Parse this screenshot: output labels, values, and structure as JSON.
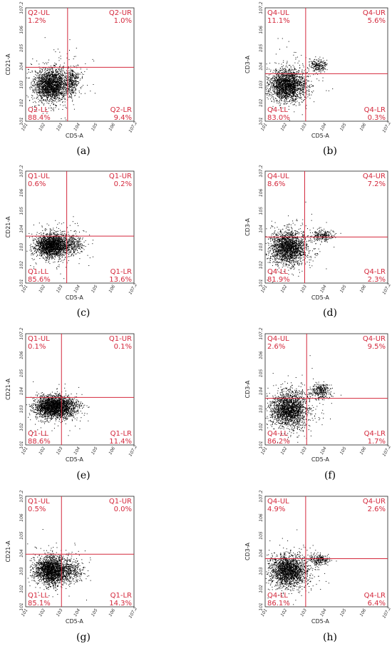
{
  "chart_data": [
    {
      "type": "scatter",
      "caption": "(a)",
      "xlabel": "CD5-A",
      "ylabel": "CD21-A",
      "xlim": [
        1,
        7.2
      ],
      "ylim": [
        1,
        7.2
      ],
      "xticks": [
        "10^1",
        "10^2",
        "10^3",
        "10^4",
        "10^5",
        "10^6",
        "10^7.2"
      ],
      "yticks": [
        "10^1",
        "10^2",
        "10^3",
        "10^4",
        "10^5",
        "10^6",
        "10^7.2"
      ],
      "gate_x": 3.4,
      "gate_y": 3.95,
      "quadrants": {
        "UL": {
          "name": "Q2-UL",
          "value": "1.2%"
        },
        "UR": {
          "name": "Q2-UR",
          "value": "1.0%"
        },
        "LL": {
          "name": "Q2-LL",
          "value": "88.4%"
        },
        "LR": {
          "name": "Q2-LR",
          "value": "9.4%"
        }
      },
      "clusters": [
        {
          "x": 2.45,
          "y": 3.0,
          "sx": 0.48,
          "sy": 0.42,
          "n": 1900
        },
        {
          "x": 3.65,
          "y": 3.2,
          "sx": 0.17,
          "sy": 0.35,
          "n": 260
        },
        {
          "x": 2.7,
          "y": 3.1,
          "sx": 0.9,
          "sy": 0.8,
          "n": 320
        }
      ]
    },
    {
      "type": "scatter",
      "caption": "(b)",
      "xlabel": "CD5-A",
      "ylabel": "CD3-A",
      "xlim": [
        1,
        7.2
      ],
      "ylim": [
        1,
        7.2
      ],
      "xticks": [
        "10^1",
        "10^2",
        "10^3",
        "10^4",
        "10^5",
        "10^6",
        "10^7.2"
      ],
      "yticks": [
        "10^1",
        "10^2",
        "10^3",
        "10^4",
        "10^5",
        "10^6",
        "10^7.2"
      ],
      "gate_x": 3.05,
      "gate_y": 3.6,
      "quadrants": {
        "UL": {
          "name": "Q4-UL",
          "value": "11.1%"
        },
        "UR": {
          "name": "Q4-UR",
          "value": "5.6%"
        },
        "LL": {
          "name": "Q4-LL",
          "value": "83.0%"
        },
        "LR": {
          "name": "Q4-LR",
          "value": "0.3%"
        }
      },
      "clusters": [
        {
          "x": 2.1,
          "y": 2.95,
          "sx": 0.45,
          "sy": 0.42,
          "n": 1900
        },
        {
          "x": 3.65,
          "y": 4.05,
          "sx": 0.22,
          "sy": 0.18,
          "n": 220
        },
        {
          "x": 2.3,
          "y": 3.2,
          "sx": 0.8,
          "sy": 0.75,
          "n": 260
        }
      ]
    },
    {
      "type": "scatter",
      "caption": "(c)",
      "xlabel": "CD5-A",
      "ylabel": "CD21-A",
      "xlim": [
        1,
        7.2
      ],
      "ylim": [
        1,
        7.2
      ],
      "xticks": [
        "10^1",
        "10^2",
        "10^3",
        "10^4",
        "10^5",
        "10^6",
        "10^7.2"
      ],
      "yticks": [
        "10^1",
        "10^2",
        "10^3",
        "10^4",
        "10^5",
        "10^6",
        "10^7.2"
      ],
      "gate_x": 3.35,
      "gate_y": 3.6,
      "quadrants": {
        "UL": {
          "name": "Q1-UL",
          "value": "0.6%"
        },
        "UR": {
          "name": "Q1-UR",
          "value": "0.2%"
        },
        "LL": {
          "name": "Q1-LL",
          "value": "85.6%"
        },
        "LR": {
          "name": "Q1-LR",
          "value": "13.6%"
        }
      },
      "clusters": [
        {
          "x": 2.45,
          "y": 3.1,
          "sx": 0.45,
          "sy": 0.32,
          "n": 1900
        },
        {
          "x": 3.6,
          "y": 3.15,
          "sx": 0.35,
          "sy": 0.3,
          "n": 320
        },
        {
          "x": 2.7,
          "y": 3.1,
          "sx": 0.85,
          "sy": 0.6,
          "n": 240
        }
      ]
    },
    {
      "type": "scatter",
      "caption": "(d)",
      "xlabel": "CD5-A",
      "ylabel": "CD3-A",
      "xlim": [
        1,
        7.2
      ],
      "ylim": [
        1,
        7.2
      ],
      "xticks": [
        "10^1",
        "10^2",
        "10^3",
        "10^4",
        "10^5",
        "10^6",
        "10^7.2"
      ],
      "yticks": [
        "10^1",
        "10^2",
        "10^3",
        "10^4",
        "10^5",
        "10^6",
        "10^7.2"
      ],
      "gate_x": 3.0,
      "gate_y": 3.55,
      "quadrants": {
        "UL": {
          "name": "Q4-UL",
          "value": "8.6%"
        },
        "UR": {
          "name": "Q4-UR",
          "value": "7.2%"
        },
        "LL": {
          "name": "Q4-LL",
          "value": "81.9%"
        },
        "LR": {
          "name": "Q4-LR",
          "value": "2.3%"
        }
      },
      "clusters": [
        {
          "x": 2.15,
          "y": 2.95,
          "sx": 0.45,
          "sy": 0.45,
          "n": 1800
        },
        {
          "x": 3.85,
          "y": 3.65,
          "sx": 0.3,
          "sy": 0.15,
          "n": 240
        },
        {
          "x": 2.3,
          "y": 3.1,
          "sx": 0.8,
          "sy": 0.8,
          "n": 240
        }
      ]
    },
    {
      "type": "scatter",
      "caption": "(e)",
      "xlabel": "CD5-A",
      "ylabel": "CD21-A",
      "xlim": [
        1,
        7.2
      ],
      "ylim": [
        1,
        7.2
      ],
      "xticks": [
        "10^1",
        "10^2",
        "10^3",
        "10^4",
        "10^5",
        "10^6",
        "10^7.2"
      ],
      "yticks": [
        "10^1",
        "10^2",
        "10^3",
        "10^4",
        "10^5",
        "10^6",
        "10^7.2"
      ],
      "gate_x": 3.05,
      "gate_y": 3.65,
      "quadrants": {
        "UL": {
          "name": "Q1-UL",
          "value": "0.1%"
        },
        "UR": {
          "name": "Q1-UR",
          "value": "0.1%"
        },
        "LL": {
          "name": "Q1-LL",
          "value": "88.6%"
        },
        "LR": {
          "name": "Q1-LR",
          "value": "11.4%"
        }
      },
      "clusters": [
        {
          "x": 2.55,
          "y": 3.15,
          "sx": 0.5,
          "sy": 0.3,
          "n": 2100
        },
        {
          "x": 3.4,
          "y": 3.1,
          "sx": 0.4,
          "sy": 0.3,
          "n": 320
        },
        {
          "x": 2.6,
          "y": 3.05,
          "sx": 0.8,
          "sy": 0.5,
          "n": 240
        }
      ]
    },
    {
      "type": "scatter",
      "caption": "(f)",
      "xlabel": "CD5-A",
      "ylabel": "CD3-A",
      "xlim": [
        1,
        7.2
      ],
      "ylim": [
        1,
        7.2
      ],
      "xticks": [
        "10^1",
        "10^2",
        "10^3",
        "10^4",
        "10^5",
        "10^6",
        "10^7.2"
      ],
      "yticks": [
        "10^1",
        "10^2",
        "10^3",
        "10^4",
        "10^5",
        "10^6",
        "10^7.2"
      ],
      "gate_x": 3.1,
      "gate_y": 3.6,
      "quadrants": {
        "UL": {
          "name": "Q4-UL",
          "value": "2.6%"
        },
        "UR": {
          "name": "Q4-UR",
          "value": "9.5%"
        },
        "LL": {
          "name": "Q4-LL",
          "value": "86.2%"
        },
        "LR": {
          "name": "Q4-LR",
          "value": "1.7%"
        }
      },
      "clusters": [
        {
          "x": 2.2,
          "y": 3.0,
          "sx": 0.45,
          "sy": 0.48,
          "n": 1800
        },
        {
          "x": 3.8,
          "y": 4.0,
          "sx": 0.25,
          "sy": 0.22,
          "n": 300
        },
        {
          "x": 2.4,
          "y": 3.1,
          "sx": 0.8,
          "sy": 0.8,
          "n": 240
        }
      ]
    },
    {
      "type": "scatter",
      "caption": "(g)",
      "xlabel": "CD5-A",
      "ylabel": "CD21-A",
      "xlim": [
        1,
        7.2
      ],
      "ylim": [
        1,
        7.2
      ],
      "xticks": [
        "10^1",
        "10^2",
        "10^3",
        "10^4",
        "10^5",
        "10^6",
        "10^7.2"
      ],
      "yticks": [
        "10^1",
        "10^2",
        "10^3",
        "10^4",
        "10^5",
        "10^6",
        "10^7.2"
      ],
      "gate_x": 3.05,
      "gate_y": 3.95,
      "quadrants": {
        "UL": {
          "name": "Q1-UL",
          "value": "0.5%"
        },
        "UR": {
          "name": "Q1-UR",
          "value": "0.0%"
        },
        "LL": {
          "name": "Q1-LL",
          "value": "85.1%"
        },
        "LR": {
          "name": "Q1-LR",
          "value": "14.3%"
        }
      },
      "clusters": [
        {
          "x": 2.45,
          "y": 3.05,
          "sx": 0.45,
          "sy": 0.38,
          "n": 1900
        },
        {
          "x": 3.5,
          "y": 3.05,
          "sx": 0.4,
          "sy": 0.32,
          "n": 320
        },
        {
          "x": 2.6,
          "y": 3.2,
          "sx": 0.8,
          "sy": 0.7,
          "n": 240
        }
      ]
    },
    {
      "type": "scatter",
      "caption": "(h)",
      "xlabel": "CD5-A",
      "ylabel": "CD3-A",
      "xlim": [
        1,
        7.2
      ],
      "ylim": [
        1,
        7.2
      ],
      "xticks": [
        "10^1",
        "10^2",
        "10^3",
        "10^4",
        "10^5",
        "10^6",
        "10^7.2"
      ],
      "yticks": [
        "10^1",
        "10^2",
        "10^3",
        "10^4",
        "10^5",
        "10^6",
        "10^7.2"
      ],
      "gate_x": 3.05,
      "gate_y": 3.7,
      "quadrants": {
        "UL": {
          "name": "Q4-UL",
          "value": "4.9%"
        },
        "UR": {
          "name": "Q4-UR",
          "value": "2.6%"
        },
        "LL": {
          "name": "Q4-LL",
          "value": "86.1%"
        },
        "LR": {
          "name": "Q4-LR",
          "value": "6.4%"
        }
      },
      "clusters": [
        {
          "x": 2.15,
          "y": 3.0,
          "sx": 0.45,
          "sy": 0.42,
          "n": 1800
        },
        {
          "x": 3.75,
          "y": 3.65,
          "sx": 0.28,
          "sy": 0.15,
          "n": 220
        },
        {
          "x": 2.3,
          "y": 3.1,
          "sx": 0.8,
          "sy": 0.75,
          "n": 240
        }
      ]
    }
  ],
  "colors": {
    "gate": "#d4283c",
    "label": "#d4283c",
    "points": "#000000",
    "axis": "#222222"
  }
}
